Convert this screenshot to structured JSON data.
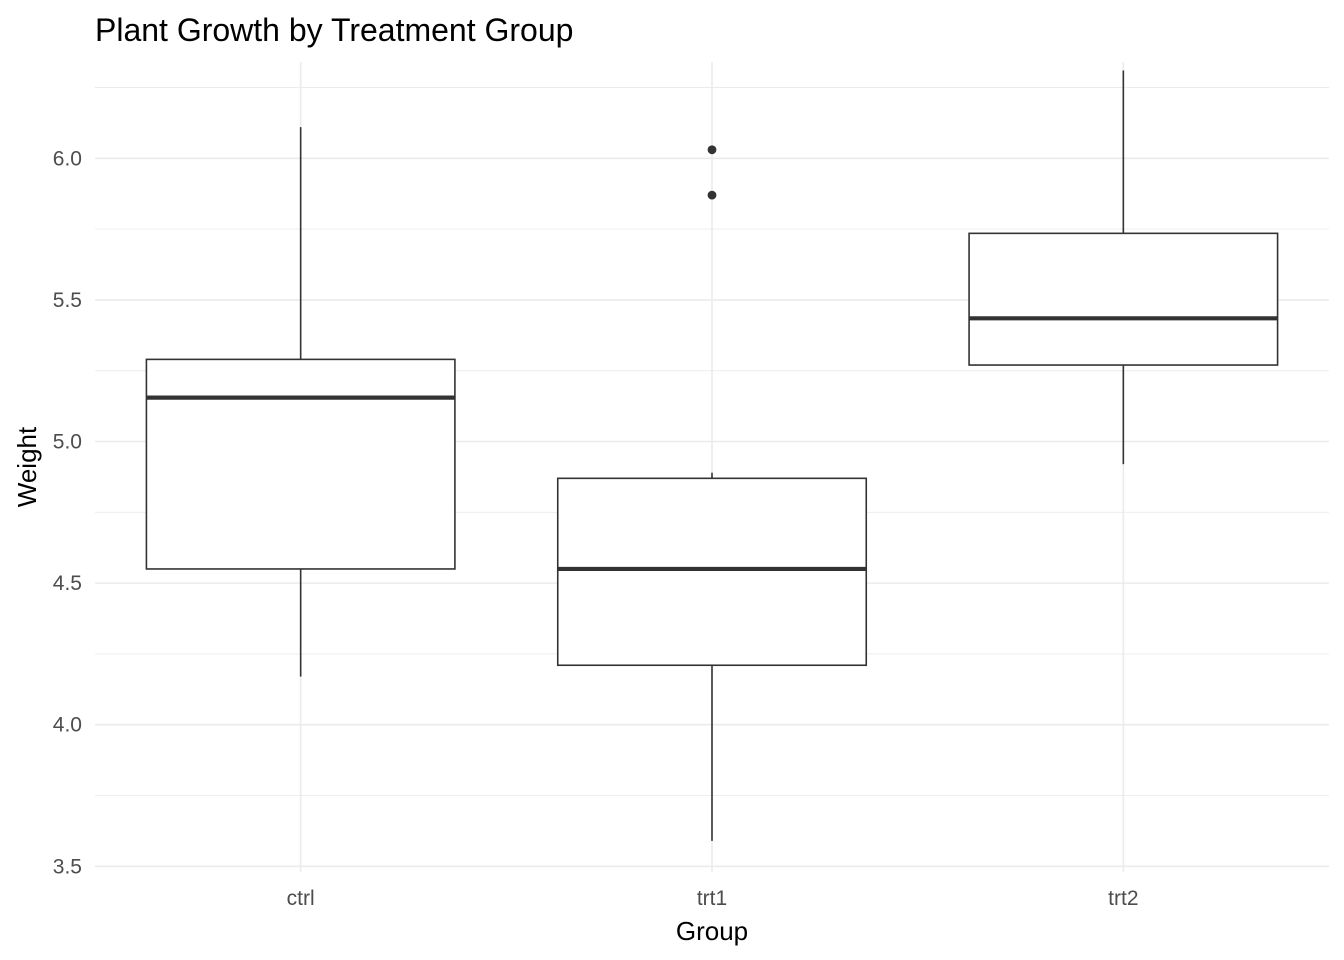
{
  "chart_data": {
    "type": "boxplot",
    "title": "Plant Growth by Treatment Group",
    "xlabel": "Group",
    "ylabel": "Weight",
    "categories": [
      "ctrl",
      "trt1",
      "trt2"
    ],
    "ylim": [
      3.48,
      6.34
    ],
    "yticks": [
      3.5,
      4.0,
      4.5,
      5.0,
      5.5,
      6.0
    ],
    "ytick_labels": [
      "3.5",
      "4.0",
      "4.5",
      "5.0",
      "5.5",
      "6.0"
    ],
    "grid": true,
    "legend": "none",
    "boxes": [
      {
        "category": "ctrl",
        "whisker_low": 4.17,
        "q1": 4.55,
        "median": 5.155,
        "q3": 5.29,
        "whisker_high": 6.11,
        "outliers": []
      },
      {
        "category": "trt1",
        "whisker_low": 3.59,
        "q1": 4.21,
        "median": 4.55,
        "q3": 4.87,
        "whisker_high": 4.89,
        "outliers": [
          5.87,
          6.03
        ]
      },
      {
        "category": "trt2",
        "whisker_low": 4.92,
        "q1": 5.27,
        "median": 5.435,
        "q3": 5.735,
        "whisker_high": 6.31,
        "outliers": []
      }
    ],
    "colors": {
      "box_line": "#333333",
      "box_fill": "#ffffff",
      "grid": "#ebebeb",
      "tick_text": "#4d4d4d"
    }
  }
}
